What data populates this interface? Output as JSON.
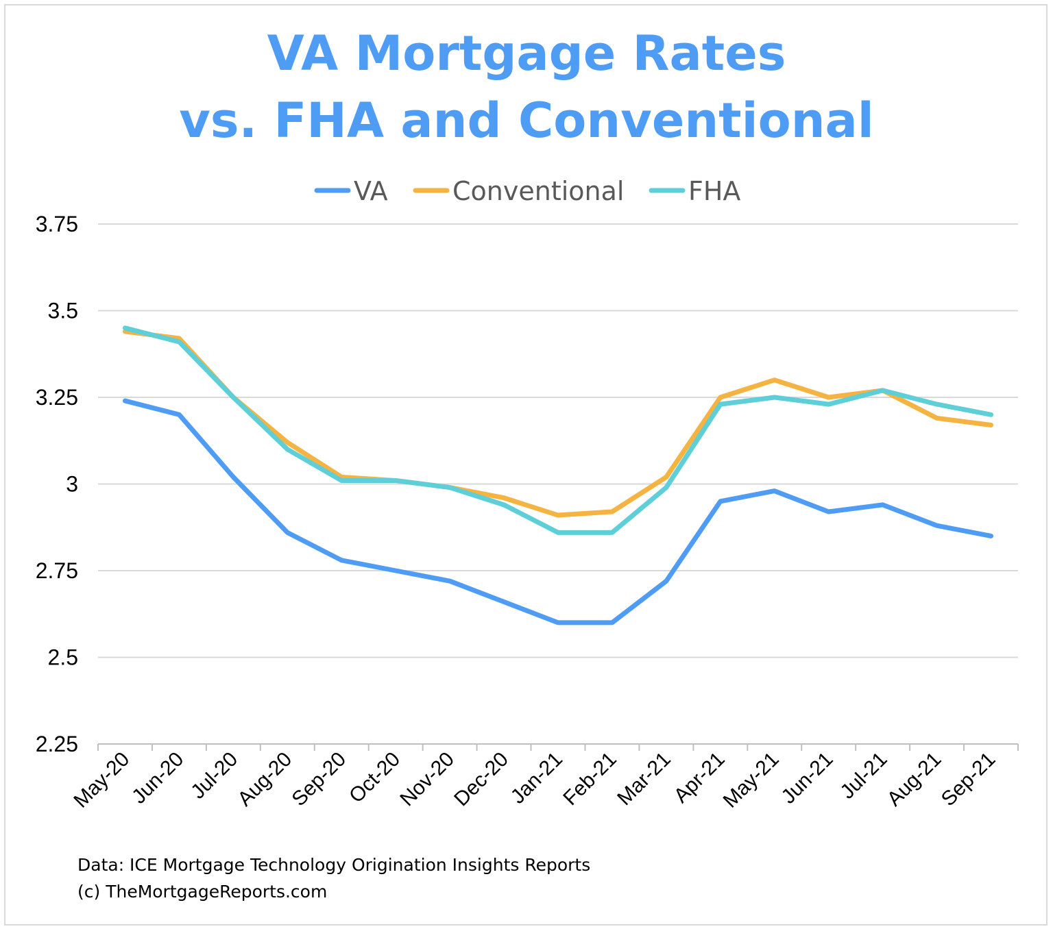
{
  "chart_data": {
    "type": "line",
    "title": [
      "VA Mortgage Rates",
      "vs. FHA and Conventional"
    ],
    "xlabel": "",
    "ylabel": "",
    "categories": [
      "May-20",
      "Jun-20",
      "Jul-20",
      "Aug-20",
      "Sep-20",
      "Oct-20",
      "Nov-20",
      "Dec-20",
      "Jan-21",
      "Feb-21",
      "Mar-21",
      "Apr-21",
      "May-21",
      "Jun-21",
      "Jul-21",
      "Aug-21",
      "Sep-21"
    ],
    "yticks": [
      "2.25",
      "2.5",
      "2.75",
      "3",
      "3.25",
      "3.5",
      "3.75"
    ],
    "ylim": [
      2.25,
      3.75
    ],
    "grid": true,
    "legend_position": "top",
    "series": [
      {
        "name": "VA",
        "color": "#4f9cf5",
        "values": [
          3.24,
          3.2,
          3.02,
          2.86,
          2.78,
          2.75,
          2.72,
          2.66,
          2.6,
          2.6,
          2.72,
          2.95,
          2.98,
          2.92,
          2.94,
          2.88,
          2.85
        ]
      },
      {
        "name": "Conventional",
        "color": "#f5b342",
        "values": [
          3.44,
          3.42,
          3.25,
          3.12,
          3.02,
          3.01,
          2.99,
          2.96,
          2.91,
          2.92,
          3.02,
          3.25,
          3.3,
          3.25,
          3.27,
          3.19,
          3.17
        ]
      },
      {
        "name": "FHA",
        "color": "#5ecfd8",
        "values": [
          3.45,
          3.41,
          3.25,
          3.1,
          3.01,
          3.01,
          2.99,
          2.94,
          2.86,
          2.86,
          2.99,
          3.23,
          3.25,
          3.23,
          3.27,
          3.23,
          3.2
        ]
      }
    ]
  },
  "footer": {
    "source": "Data: ICE Mortgage Technology Origination Insights Reports",
    "copyright": "(c) TheMortgageReports.com"
  }
}
